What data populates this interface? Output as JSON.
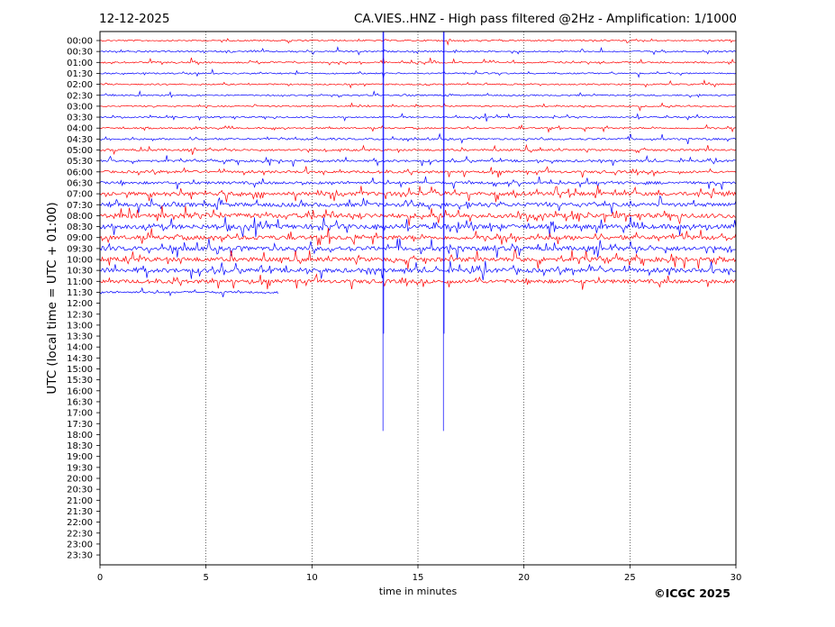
{
  "chart_data": {
    "type": "line",
    "date": "12-12-2025",
    "title": "CA.VIES..HNZ - High pass filtered @2Hz - Amplification: 1/1000",
    "xlabel": "time in minutes",
    "ylabel": "UTC (local time = UTC + 01:00)",
    "xlim": [
      0,
      30
    ],
    "x_ticks": [
      "0",
      "5",
      "10",
      "15",
      "20",
      "25",
      "30"
    ],
    "grid": "vertical dotted lines at 5-minute intervals",
    "copyright": "©ICGC 2025",
    "colors": {
      "red_trace": "#ff0000",
      "blue_trace": "#0000ff",
      "grid": "#000000"
    },
    "traces": [
      {
        "label": "00:00",
        "color": "red",
        "end_min": 30,
        "activity": 0.15
      },
      {
        "label": "00:30",
        "color": "blue",
        "end_min": 30,
        "activity": 0.15
      },
      {
        "label": "01:00",
        "color": "red",
        "end_min": 30,
        "activity": 0.2
      },
      {
        "label": "01:30",
        "color": "blue",
        "end_min": 30,
        "activity": 0.15
      },
      {
        "label": "02:00",
        "color": "red",
        "end_min": 30,
        "activity": 0.15
      },
      {
        "label": "02:30",
        "color": "blue",
        "end_min": 30,
        "activity": 0.15
      },
      {
        "label": "03:00",
        "color": "red",
        "end_min": 30,
        "activity": 0.15
      },
      {
        "label": "03:30",
        "color": "blue",
        "end_min": 30,
        "activity": 0.15
      },
      {
        "label": "04:00",
        "color": "red",
        "end_min": 30,
        "activity": 0.2
      },
      {
        "label": "04:30",
        "color": "blue",
        "end_min": 30,
        "activity": 0.25
      },
      {
        "label": "05:00",
        "color": "red",
        "end_min": 30,
        "activity": 0.3
      },
      {
        "label": "05:30",
        "color": "blue",
        "end_min": 30,
        "activity": 0.35
      },
      {
        "label": "06:00",
        "color": "red",
        "end_min": 30,
        "activity": 0.4
      },
      {
        "label": "06:30",
        "color": "blue",
        "end_min": 30,
        "activity": 0.45
      },
      {
        "label": "07:00",
        "color": "red",
        "end_min": 30,
        "activity": 0.7
      },
      {
        "label": "07:30",
        "color": "blue",
        "end_min": 30,
        "activity": 0.75
      },
      {
        "label": "08:00",
        "color": "red",
        "end_min": 30,
        "activity": 0.9
      },
      {
        "label": "08:30",
        "color": "blue",
        "end_min": 30,
        "activity": 0.9
      },
      {
        "label": "09:00",
        "color": "red",
        "end_min": 30,
        "activity": 0.8
      },
      {
        "label": "09:30",
        "color": "blue",
        "end_min": 30,
        "activity": 0.85
      },
      {
        "label": "10:00",
        "color": "red",
        "end_min": 30,
        "activity": 0.85
      },
      {
        "label": "10:30",
        "color": "blue",
        "end_min": 30,
        "activity": 0.85
      },
      {
        "label": "11:00",
        "color": "red",
        "end_min": 30,
        "activity": 0.7
      },
      {
        "label": "11:30",
        "color": "blue",
        "end_min": 8.4,
        "activity": 0.3
      },
      {
        "label": "12:00",
        "color": "red",
        "end_min": 0,
        "activity": 0
      },
      {
        "label": "12:30",
        "color": "blue",
        "end_min": 0,
        "activity": 0
      },
      {
        "label": "13:00",
        "color": "red",
        "end_min": 0,
        "activity": 0
      },
      {
        "label": "13:30",
        "color": "blue",
        "end_min": 0,
        "activity": 0
      },
      {
        "label": "14:00",
        "color": "red",
        "end_min": 0,
        "activity": 0
      },
      {
        "label": "14:30",
        "color": "blue",
        "end_min": 0,
        "activity": 0
      },
      {
        "label": "15:00",
        "color": "red",
        "end_min": 0,
        "activity": 0
      },
      {
        "label": "15:30",
        "color": "blue",
        "end_min": 0,
        "activity": 0
      },
      {
        "label": "16:00",
        "color": "red",
        "end_min": 0,
        "activity": 0
      },
      {
        "label": "16:30",
        "color": "blue",
        "end_min": 0,
        "activity": 0
      },
      {
        "label": "17:00",
        "color": "red",
        "end_min": 0,
        "activity": 0
      },
      {
        "label": "17:30",
        "color": "blue",
        "end_min": 0,
        "activity": 0
      },
      {
        "label": "18:00",
        "color": "red",
        "end_min": 0,
        "activity": 0
      },
      {
        "label": "18:30",
        "color": "blue",
        "end_min": 0,
        "activity": 0
      },
      {
        "label": "19:00",
        "color": "red",
        "end_min": 0,
        "activity": 0
      },
      {
        "label": "19:30",
        "color": "blue",
        "end_min": 0,
        "activity": 0
      },
      {
        "label": "20:00",
        "color": "red",
        "end_min": 0,
        "activity": 0
      },
      {
        "label": "20:30",
        "color": "blue",
        "end_min": 0,
        "activity": 0
      },
      {
        "label": "21:00",
        "color": "red",
        "end_min": 0,
        "activity": 0
      },
      {
        "label": "21:30",
        "color": "blue",
        "end_min": 0,
        "activity": 0
      },
      {
        "label": "22:00",
        "color": "red",
        "end_min": 0,
        "activity": 0
      },
      {
        "label": "22:30",
        "color": "blue",
        "end_min": 0,
        "activity": 0
      },
      {
        "label": "23:00",
        "color": "red",
        "end_min": 0,
        "activity": 0
      },
      {
        "label": "23:30",
        "color": "blue",
        "end_min": 0,
        "activity": 0
      }
    ],
    "spikes": [
      {
        "minute": 13.35,
        "from": "00:00",
        "to": "18:00",
        "color": "blue"
      },
      {
        "minute": 16.2,
        "from": "00:00",
        "to": "18:00",
        "color": "blue"
      }
    ]
  }
}
